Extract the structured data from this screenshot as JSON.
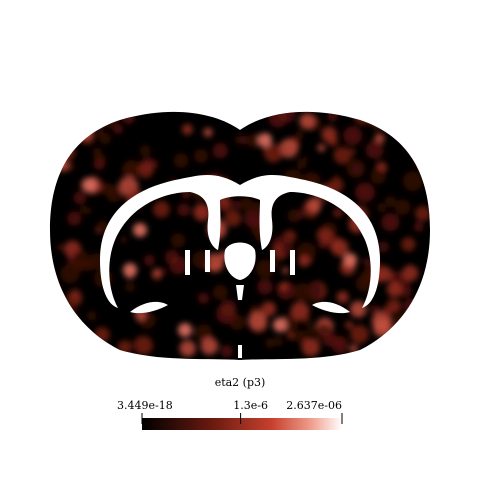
{
  "colorbar": {
    "title": "eta2 (p3)",
    "lim": [
      3.449e-18,
      2.637e-06
    ],
    "ticks": [
      {
        "value": 3.449e-18,
        "label": "3.449e-18"
      },
      {
        "value": 1.3e-06,
        "label": "1.3e-6"
      },
      {
        "value": 2.637e-06,
        "label": "2.637e-06"
      }
    ]
  }
}
